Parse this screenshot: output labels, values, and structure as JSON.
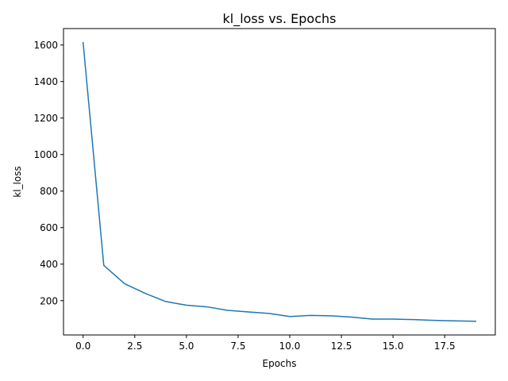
{
  "chart_data": {
    "type": "line",
    "title": "kl_loss vs. Epochs",
    "xlabel": "Epochs",
    "ylabel": "kl_loss",
    "xlim": [
      -0.95,
      19.95
    ],
    "ylim": [
      12,
      1690
    ],
    "xticks": [
      0,
      2.5,
      5,
      7.5,
      10,
      12.5,
      15,
      17.5
    ],
    "xtick_labels": [
      "0.0",
      "2.5",
      "5.0",
      "7.5",
      "10.0",
      "12.5",
      "15.0",
      "17.5"
    ],
    "yticks": [
      200,
      400,
      600,
      800,
      1000,
      1200,
      1400,
      1600
    ],
    "ytick_labels": [
      "200",
      "400",
      "600",
      "800",
      "1000",
      "1200",
      "1400",
      "1600"
    ],
    "grid": false,
    "series": [
      {
        "x": [
          0,
          1,
          2,
          3,
          4,
          5,
          6,
          7,
          8,
          9,
          10,
          11,
          12,
          13,
          14,
          15,
          16,
          17,
          18,
          19
        ],
        "values": [
          1613,
          393,
          293,
          240,
          195,
          175,
          166,
          147,
          138,
          130,
          113,
          119,
          117,
          110,
          99,
          99,
          96,
          92,
          89,
          87
        ],
        "color": "#1f77b4"
      }
    ]
  }
}
